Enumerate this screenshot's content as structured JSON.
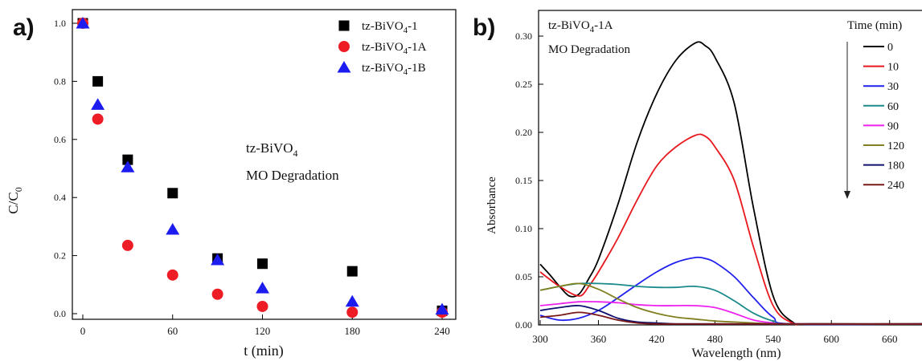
{
  "chart_data": [
    {
      "panel_label": "a)",
      "type": "scatter",
      "xlabel": "t (min)",
      "ylabel": "C/C",
      "ylabel_sub": "0",
      "xlim": [
        0,
        240
      ],
      "ylim": [
        0.0,
        1.05
      ],
      "xticks": [
        "0",
        "60",
        "120",
        "180",
        "240"
      ],
      "yticks": [
        "0.0",
        "0.2",
        "0.4",
        "0.6",
        "0.8",
        "1.0"
      ],
      "annotation": {
        "line1": "tz-BiVO",
        "line1_sub": "4",
        "line2": "MO Degradation"
      },
      "legend_position": "top-right",
      "grid": false,
      "series": [
        {
          "name": "tz-BiVO4-1",
          "label_main": "tz-BiVO",
          "label_sub": "4",
          "label_tail": "-1",
          "marker": "square",
          "color": "#000000",
          "x": [
            0,
            10,
            30,
            60,
            90,
            120,
            180,
            240
          ],
          "y": [
            1.0,
            0.8,
            0.53,
            0.415,
            0.19,
            0.172,
            0.146,
            0.01
          ]
        },
        {
          "name": "tz-BiVO4-1A",
          "label_main": "tz-BiVO",
          "label_sub": "4",
          "label_tail": "-1A",
          "marker": "circle",
          "color": "#ee1c25",
          "x": [
            0,
            10,
            30,
            60,
            90,
            120,
            180,
            240
          ],
          "y": [
            1.0,
            0.67,
            0.235,
            0.133,
            0.067,
            0.025,
            0.005,
            0.005
          ]
        },
        {
          "name": "tz-BiVO4-1B",
          "label_main": "tz-BiVO",
          "label_sub": "4",
          "label_tail": "-1B",
          "marker": "triangle",
          "color": "#1c1cf0",
          "x": [
            0,
            10,
            30,
            60,
            90,
            120,
            180,
            240
          ],
          "y": [
            1.0,
            0.72,
            0.505,
            0.29,
            0.185,
            0.088,
            0.042,
            0.015
          ]
        }
      ]
    },
    {
      "panel_label": "b)",
      "type": "line",
      "xlabel": "Wavelength (nm)",
      "ylabel": "Absorbance",
      "xlim": [
        300,
        700
      ],
      "ylim": [
        0.0,
        0.32
      ],
      "xticks": [
        "300",
        "360",
        "420",
        "480",
        "540",
        "600",
        "660"
      ],
      "yticks": [
        "0.00",
        "0.05",
        "0.10",
        "0.15",
        "0.20",
        "0.25",
        "0.30"
      ],
      "annotation": {
        "line1": "tz-BiVO",
        "line1_sub": "4",
        "line1_tail": "-1A",
        "line2": "MO Degradation"
      },
      "legend_title": "Time (min)",
      "legend_position": "top-right",
      "grid": false,
      "series": [
        {
          "name": "0",
          "color": "#000000",
          "x": [
            300,
            310,
            320,
            330,
            340,
            350,
            360,
            380,
            400,
            420,
            440,
            460,
            470,
            480,
            500,
            520,
            540,
            560,
            580,
            700
          ],
          "y": [
            0.063,
            0.052,
            0.04,
            0.03,
            0.032,
            0.048,
            0.068,
            0.125,
            0.19,
            0.24,
            0.275,
            0.293,
            0.29,
            0.278,
            0.23,
            0.12,
            0.03,
            0.003,
            0.001,
            0.001
          ]
        },
        {
          "name": "10",
          "color": "#e8181e",
          "x": [
            300,
            320,
            340,
            350,
            360,
            380,
            400,
            420,
            440,
            460,
            470,
            480,
            500,
            520,
            540,
            560,
            580,
            700
          ],
          "y": [
            0.055,
            0.04,
            0.03,
            0.04,
            0.055,
            0.09,
            0.13,
            0.165,
            0.185,
            0.197,
            0.196,
            0.185,
            0.15,
            0.08,
            0.02,
            0.002,
            0.001,
            0.001
          ]
        },
        {
          "name": "30",
          "color": "#2020ee",
          "x": [
            300,
            320,
            340,
            360,
            380,
            400,
            420,
            440,
            460,
            470,
            480,
            500,
            520,
            540,
            560,
            700
          ],
          "y": [
            0.01,
            0.005,
            0.007,
            0.015,
            0.028,
            0.042,
            0.055,
            0.065,
            0.07,
            0.069,
            0.065,
            0.05,
            0.028,
            0.008,
            0.001,
            0.001
          ]
        },
        {
          "name": "60",
          "color": "#1a8a8a",
          "x": [
            300,
            320,
            340,
            360,
            380,
            400,
            420,
            440,
            460,
            480,
            500,
            520,
            540,
            560,
            700
          ],
          "y": [
            0.036,
            0.04,
            0.043,
            0.043,
            0.042,
            0.04,
            0.039,
            0.039,
            0.04,
            0.036,
            0.025,
            0.012,
            0.004,
            0.001,
            0.001
          ]
        },
        {
          "name": "90",
          "color": "#ee22ee",
          "x": [
            300,
            320,
            340,
            360,
            380,
            400,
            420,
            440,
            460,
            480,
            500,
            520,
            540,
            560,
            700
          ],
          "y": [
            0.02,
            0.022,
            0.024,
            0.024,
            0.023,
            0.021,
            0.02,
            0.02,
            0.02,
            0.018,
            0.012,
            0.005,
            0.002,
            0.001,
            0.001
          ]
        },
        {
          "name": "120",
          "color": "#808020",
          "x": [
            300,
            320,
            340,
            360,
            380,
            400,
            420,
            440,
            460,
            480,
            500,
            520,
            540,
            560,
            700
          ],
          "y": [
            0.036,
            0.04,
            0.043,
            0.037,
            0.027,
            0.018,
            0.012,
            0.008,
            0.006,
            0.004,
            0.003,
            0.002,
            0.001,
            0.001,
            0.001
          ]
        },
        {
          "name": "180",
          "color": "#10106e",
          "x": [
            300,
            320,
            340,
            360,
            380,
            400,
            420,
            440,
            460,
            700
          ],
          "y": [
            0.015,
            0.018,
            0.02,
            0.015,
            0.007,
            0.003,
            0.002,
            0.001,
            0.001,
            0.001
          ]
        },
        {
          "name": "240",
          "color": "#7a1818",
          "x": [
            300,
            320,
            340,
            360,
            380,
            400,
            420,
            440,
            700
          ],
          "y": [
            0.008,
            0.01,
            0.013,
            0.01,
            0.005,
            0.002,
            0.001,
            0.001,
            0.001
          ]
        }
      ]
    }
  ]
}
